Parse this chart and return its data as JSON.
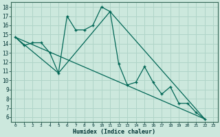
{
  "xlabel": "Humidex (Indice chaleur)",
  "background_color": "#cce8dd",
  "grid_color": "#b0d4c8",
  "line_color": "#006655",
  "xlim": [
    -0.5,
    23.5
  ],
  "ylim": [
    5.5,
    18.5
  ],
  "xticks": [
    0,
    1,
    2,
    3,
    4,
    5,
    6,
    7,
    8,
    9,
    10,
    11,
    12,
    13,
    14,
    15,
    16,
    17,
    18,
    19,
    20,
    21,
    22,
    23
  ],
  "yticks": [
    6,
    7,
    8,
    9,
    10,
    11,
    12,
    13,
    14,
    15,
    16,
    17,
    18
  ],
  "curve1_x": [
    0,
    1,
    2,
    3,
    4,
    5,
    6,
    7,
    8,
    9,
    10,
    11,
    12,
    13,
    14,
    15,
    16,
    17,
    18,
    19,
    20,
    21,
    22
  ],
  "curve1_y": [
    14.7,
    13.8,
    14.1,
    14.1,
    13.0,
    10.8,
    17.0,
    15.5,
    15.5,
    16.0,
    18.0,
    17.5,
    11.8,
    9.5,
    9.8,
    11.5,
    9.8,
    8.5,
    9.3,
    7.5,
    7.5,
    6.5,
    5.8
  ],
  "curve2_x": [
    0,
    5,
    11,
    22
  ],
  "curve2_y": [
    14.7,
    10.8,
    17.5,
    5.8
  ],
  "curve3_x": [
    0,
    22
  ],
  "curve3_y": [
    14.7,
    5.8
  ]
}
